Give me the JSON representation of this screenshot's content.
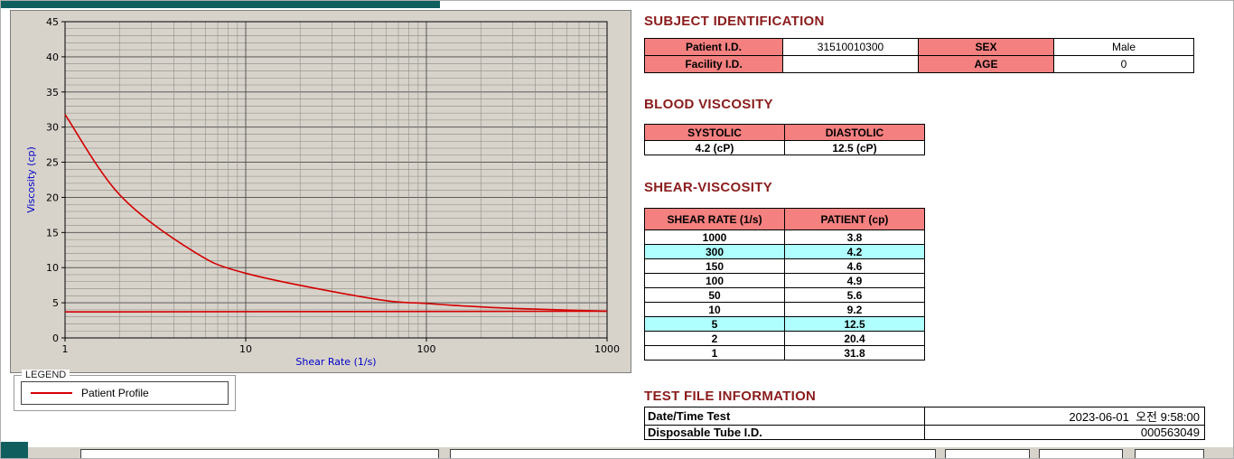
{
  "colors": {
    "header_text": "#8b1c1c",
    "table_header_bg": "#f48080",
    "row_highlight_bg": "#b0ffff",
    "curve_red": "#d40000",
    "axis_label_blue": "#0000c8",
    "chart_panel_bg": "#d7d3cb",
    "teal_accent": "#115e5e"
  },
  "chart_data": {
    "type": "line",
    "title": "",
    "xlabel": "Shear Rate (1/s)",
    "ylabel": "Viscosity (cp)",
    "x_scale": "log",
    "xlim": [
      1,
      1000
    ],
    "ylim": [
      0,
      45
    ],
    "x_ticks": [
      1,
      10,
      100,
      1000
    ],
    "y_ticks": [
      0,
      5,
      10,
      15,
      20,
      25,
      30,
      35,
      40,
      45
    ],
    "grid": "major-and-minor",
    "legend_position": "below-left",
    "series": [
      {
        "name": "Patient Profile",
        "color": "#d40000",
        "x": [
          1,
          2,
          5,
          10,
          50,
          100,
          150,
          300,
          1000
        ],
        "y": [
          31.8,
          20.4,
          12.5,
          9.2,
          5.6,
          4.9,
          4.6,
          4.2,
          3.8
        ]
      },
      {
        "name": "flat-reference-line",
        "color": "#d40000",
        "x": [
          1,
          1000
        ],
        "y": [
          3.7,
          3.8
        ]
      }
    ],
    "legend": {
      "title": "LEGEND",
      "entries": [
        {
          "label": "Patient Profile",
          "color": "#d40000"
        }
      ]
    }
  },
  "subject_identification": {
    "title": "SUBJECT IDENTIFICATION",
    "rows": [
      {
        "label1": "Patient I.D.",
        "value1": "31510010300",
        "label2": "SEX",
        "value2": "Male"
      },
      {
        "label1": "Facility I.D.",
        "value1": "",
        "label2": "AGE",
        "value2": "0"
      }
    ]
  },
  "blood_viscosity": {
    "title": "BLOOD VISCOSITY",
    "headers": [
      "SYSTOLIC",
      "DIASTOLIC"
    ],
    "values": [
      "4.2 (cP)",
      "12.5 (cP)"
    ]
  },
  "shear_viscosity": {
    "title": "SHEAR-VISCOSITY",
    "headers": [
      "SHEAR RATE (1/s)",
      "PATIENT (cp)"
    ],
    "rows": [
      {
        "rate": "1000",
        "value": "3.8",
        "highlight": false
      },
      {
        "rate": "300",
        "value": "4.2",
        "highlight": true
      },
      {
        "rate": "150",
        "value": "4.6",
        "highlight": false
      },
      {
        "rate": "100",
        "value": "4.9",
        "highlight": false
      },
      {
        "rate": "50",
        "value": "5.6",
        "highlight": false
      },
      {
        "rate": "10",
        "value": "9.2",
        "highlight": false
      },
      {
        "rate": "5",
        "value": "12.5",
        "highlight": true
      },
      {
        "rate": "2",
        "value": "20.4",
        "highlight": false
      },
      {
        "rate": "1",
        "value": "31.8",
        "highlight": false
      }
    ]
  },
  "test_file_information": {
    "title": "TEST FILE INFORMATION",
    "rows": [
      {
        "label": "Date/Time Test",
        "value": "2023-06-01  오전 9:58:00"
      },
      {
        "label": "Disposable Tube I.D.",
        "value": "000563049"
      }
    ]
  }
}
